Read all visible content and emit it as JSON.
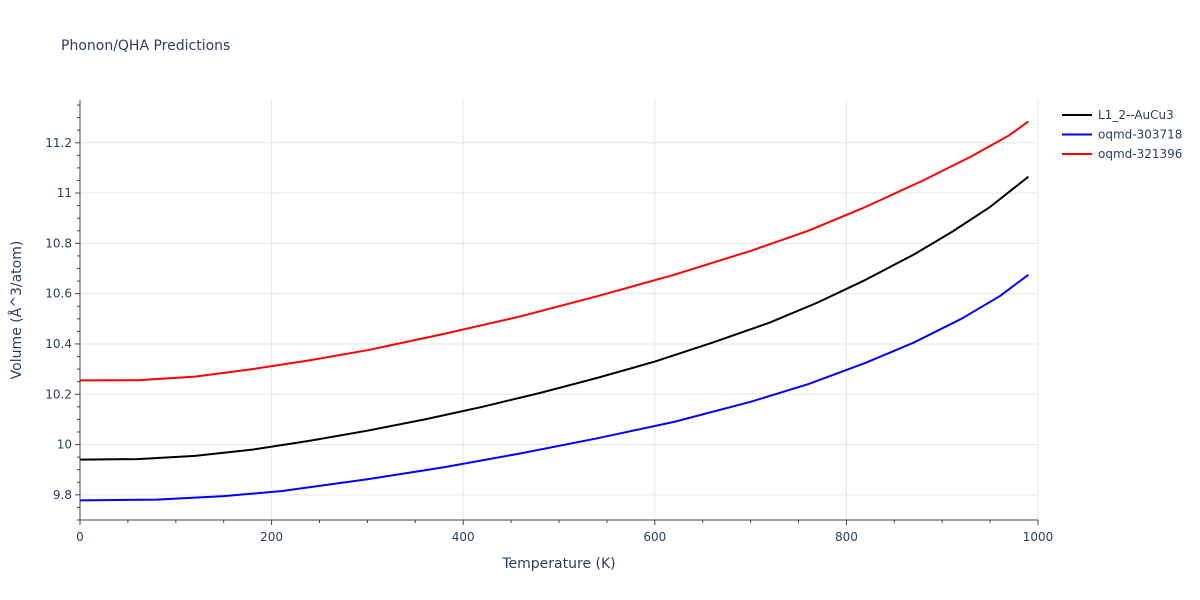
{
  "chart_data": {
    "type": "line",
    "title": "Phonon/QHA Predictions",
    "xlabel": "Temperature (K)",
    "ylabel": "Volume (Å^3/atom)",
    "xlim": [
      0,
      1000
    ],
    "ylim": [
      9.7,
      11.37
    ],
    "xticks": [
      0,
      200,
      400,
      600,
      800,
      1000
    ],
    "xtick_labels": [
      "0",
      "200",
      "400",
      "600",
      "800",
      "1000"
    ],
    "yticks": [
      9.8,
      10,
      10.2,
      10.4,
      10.6,
      10.8,
      11,
      11.2
    ],
    "ytick_labels": [
      "9.8",
      "10",
      "10.2",
      "10.4",
      "10.6",
      "10.8",
      "11",
      "11.2"
    ],
    "grid": true,
    "legend_position": "top-right",
    "series": [
      {
        "name": "L1_2--AuCu3",
        "color": "#000000",
        "x": [
          0,
          60,
          120,
          180,
          240,
          300,
          360,
          420,
          480,
          540,
          600,
          660,
          720,
          770,
          820,
          870,
          910,
          950,
          990
        ],
        "y": [
          9.94,
          9.942,
          9.955,
          9.98,
          10.015,
          10.055,
          10.1,
          10.15,
          10.205,
          10.265,
          10.33,
          10.405,
          10.485,
          10.565,
          10.655,
          10.755,
          10.845,
          10.945,
          11.065
        ]
      },
      {
        "name": "oqmd-303718",
        "color": "#0000ff",
        "x": [
          0,
          80,
          150,
          210,
          300,
          380,
          460,
          540,
          620,
          700,
          760,
          820,
          870,
          920,
          960,
          990
        ],
        "y": [
          9.778,
          9.781,
          9.795,
          9.815,
          9.862,
          9.91,
          9.965,
          10.025,
          10.09,
          10.17,
          10.24,
          10.325,
          10.405,
          10.5,
          10.59,
          10.675
        ]
      },
      {
        "name": "oqmd-321396",
        "color": "#ff0000",
        "x": [
          0,
          60,
          120,
          180,
          240,
          300,
          380,
          460,
          540,
          620,
          700,
          760,
          820,
          880,
          930,
          970,
          990
        ],
        "y": [
          10.255,
          10.256,
          10.27,
          10.3,
          10.335,
          10.375,
          10.44,
          10.51,
          10.59,
          10.675,
          10.77,
          10.85,
          10.945,
          11.05,
          11.145,
          11.23,
          11.285
        ]
      }
    ]
  }
}
